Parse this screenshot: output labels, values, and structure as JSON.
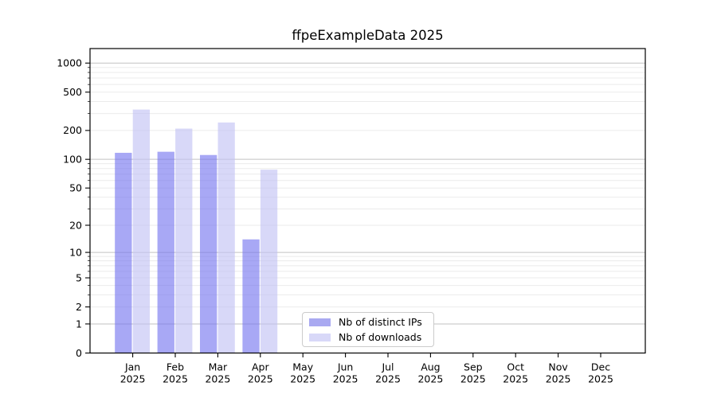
{
  "title": "ffpeExampleData 2025",
  "colors": {
    "ips_bar": "rgba(115,115,239,0.62)",
    "downloads_bar": "rgba(192,192,244,0.62)",
    "ips_swatch": "#a9a9f1",
    "downloads_swatch": "#d8d8f8",
    "grid_major": "#c2c2c2",
    "grid_minor": "#ebebeb",
    "axis": "#000000",
    "text": "#000000"
  },
  "legend": {
    "items": [
      {
        "label": "Nb of distinct IPs",
        "color_key": "ips_swatch"
      },
      {
        "label": "Nb of downloads",
        "color_key": "downloads_swatch"
      }
    ]
  },
  "chart_data": {
    "type": "bar",
    "title": "ffpeExampleData 2025",
    "categories": [
      "Jan",
      "Feb",
      "Mar",
      "Apr",
      "May",
      "Jun",
      "Jul",
      "Aug",
      "Sep",
      "Oct",
      "Nov",
      "Dec"
    ],
    "year": "2025",
    "series": [
      {
        "name": "Nb of distinct IPs",
        "values": [
          117,
          120,
          111,
          14,
          0,
          0,
          0,
          0,
          0,
          0,
          0,
          0
        ]
      },
      {
        "name": "Nb of downloads",
        "values": [
          330,
          209,
          242,
          78,
          0,
          0,
          0,
          0,
          0,
          0,
          0,
          0
        ]
      }
    ],
    "xlabel": "",
    "ylabel": "",
    "y_scale": "log10(value+1)",
    "ylim": [
      0,
      1400
    ],
    "y_ticks": [
      0,
      1,
      2,
      5,
      10,
      20,
      50,
      100,
      200,
      500,
      1000
    ],
    "y_major_gridlines": [
      1,
      10,
      100,
      1000
    ],
    "y_minor_gridlines": [
      3,
      4,
      6,
      7,
      8,
      9,
      30,
      40,
      60,
      70,
      80,
      90,
      300,
      400,
      600,
      700,
      800,
      900
    ],
    "grid": true,
    "legend_position": "lower center"
  }
}
